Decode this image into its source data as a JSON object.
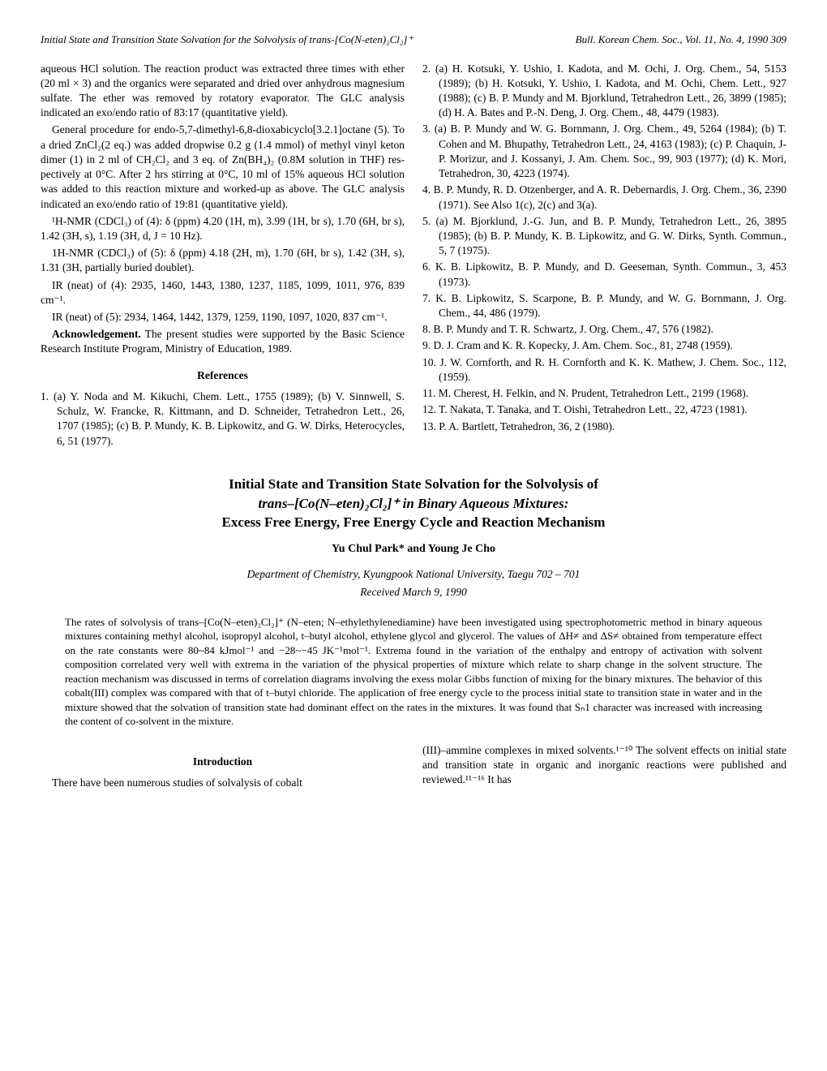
{
  "header": {
    "left": "Initial State and Transition State Solvation for the Solvolysis of trans-[Co(N-eten)₂Cl₂]⁺",
    "right": "Bull. Korean Chem. Soc., Vol. 11, No. 4, 1990   309"
  },
  "body": {
    "p1": "aqueous HCl solution. The reaction product was extracted three times with ether (20 ml × 3) and the organics were separated and dried over anhydrous magnesium sulfate. The ether was removed by rotatory evaporator. The GLC analy­sis indicated an exo/endo ratio of 83:17 (quantitative yield).",
    "p2": "General procedure for endo-5,7-dimethyl-6,8-dioxabicy­clo[3.2.1]octane (5). To a dried ZnCl₂(2 eq.) was added drop­wise 0.2 g (1.4 mmol) of methyl vinyl keton dimer (1) in 2 ml of CH₂Cl₂ and 3 eq. of Zn(BH₄)₂ (0.8M solution in THF) res­pectively at 0°C. After 2 hrs stirring at 0°C, 10 ml of 15% aqueous HCl solution was added to this reaction mixture and worked-up as above. The GLC analysis indicated an exo/endo ratio of 19:81 (quantitative yield).",
    "p3": "¹H-NMR (CDCl₃) of (4): δ (ppm) 4.20 (1H, m), 3.99 (1H, br s), 1.70 (6H, br s), 1.42 (3H, s), 1.19 (3H, d, J = 10 Hz).",
    "p4": "1H-NMR (CDCl₃) of (5): δ (ppm) 4.18 (2H, m), 1.70 (6H, br s), 1.42 (3H, s), 1.31 (3H, partially buried doublet).",
    "p5": "IR (neat) of (4): 2935, 1460, 1443, 1380, 1237, 1185, 1099, 1011, 976, 839 cm⁻¹.",
    "p6": "IR (neat) of (5): 2934, 1464, 1442, 1379, 1259, 1190, 1097, 1020, 837 cm⁻¹.",
    "p7_label": "Acknowledgement.",
    "p7": " The present studies were support­ed by the Basic Science Research Institute Program, Minis­try of Education, 1989.",
    "refs_heading": "References",
    "refs": [
      "1. (a) Y. Noda and M. Kikuchi, Chem. Lett., 1755 (1989); (b) V. Sinnwell, S. Schulz, W. Francke, R. Kittmann, and D. Schneider, Tetrahedron Lett., 26, 1707 (1985); (c) B. P. Mundy, K. B. Lipkowitz, and G. W. Dirks, Hetero­cycles, 6, 51 (1977).",
      "2. (a) H. Kotsuki, Y. Ushio, I. Kadota, and M. Ochi, J. Org. Chem., 54, 5153 (1989); (b) H. Kotsuki, Y. Ushio, I. Kadota, and M. Ochi, Chem. Lett., 927 (1988); (c) B. P. Mundy and M. Bjorklund, Tetrahedron Lett., 26, 3899 (1985); (d) H. A. Bates and P.-N. Deng, J. Org. Chem., 48, 4479 (1983).",
      "3. (a) B. P. Mundy and W. G. Bornmann, J. Org. Chem., 49, 5264 (1984); (b) T. Cohen and M. Bhupathy, Tetrahed­ron Lett., 24, 4163 (1983); (c) P. Chaquin, J-P. Morizur, and J. Kossanyi, J. Am. Chem. Soc., 99, 903 (1977); (d) K. Mori, Tetrahedron, 30, 4223 (1974).",
      "4. B. P. Mundy, R. D. Otzenberger, and A. R. Debernar­dis, J. Org. Chem., 36, 2390 (1971). See Also 1(c), 2(c) and 3(a).",
      "5. (a) M. Bjorklund, J.-G. Jun, and B. P. Mundy, Tetrahed­ron Lett., 26, 3895 (1985); (b) B. P. Mundy, K. B. Lip­kowitz, and G. W. Dirks, Synth. Commun., 5, 7 (1975).",
      "6. K. B. Lipkowitz, B. P. Mundy, and D. Geeseman, Synth. Commun., 3, 453 (1973).",
      "7. K. B. Lipkowitz, S. Scarpone, B. P. Mundy, and W. G. Bornmann, J. Org. Chem., 44, 486 (1979).",
      "8. B. P. Mundy and T. R. Schwartz, J. Org. Chem., 47, 576 (1982).",
      "9. D. J. Cram and K. R. Kopecky, J. Am. Chem. Soc., 81, 2748 (1959).",
      "10. J. W. Cornforth, and R. H. Cornforth and K. K. Mathew, J. Chem. Soc., 112, (1959).",
      "11. M. Cherest, H. Felkin, and N. Prudent, Tetrahedron Lett., 2199 (1968).",
      "12. T. Nakata, T. Tanaka, and T. Oishi, Tetrahedron Lett., 22, 4723 (1981).",
      "13. P. A. Bartlett, Tetrahedron, 36, 2 (1980)."
    ]
  },
  "article": {
    "title_l1": "Initial State and Transition State Solvation for the Solvolysis of",
    "title_l2": "trans–[Co(N–eten)₂Cl₂]⁺ in Binary Aqueous Mixtures:",
    "title_l3": "Excess Free Energy, Free Energy Cycle and Reaction Mechanism",
    "authors": "Yu Chul Park* and Young Je Cho",
    "affiliation": "Department of Chemistry, Kyungpook National University, Taegu 702 – 701",
    "received": "Received March 9, 1990",
    "abstract": "The rates of solvolysis of trans–[Co(N–eten)₂Cl₂]⁺ (N–eten; N–ethylethylenediamine) have been investigated using spectro­photometric method in binary aqueous mixtures containing methyl alcohol, isopropyl alcohol, t–butyl alcohol, ethylene glycol and glycerol. The values of ΔH≠ and ΔS≠ obtained from temperature effect on the rate constants were 80~84 kJmol⁻¹ and −28~−45 JK⁻¹mol⁻¹. Extrema found in the variation of the enthalpy and entropy of activation with solvent composition cor­related very well with extrema in the variation of the physical properties of mixture which relate to sharp change in the sol­vent structure. The reaction mechanism was discussed in terms of correlation diagrams involving the exess molar Gibbs function of mixing for the binary mixtures. The behavior of this cobalt(III) complex was compared with that of t–butyl chloride. The application of free energy cycle to the process initial state to transition state in water and in the mixture showed that the solvation of transition state had dominant effect on the rates in the mixtures. It was found that Sₙ1 character was in­creased with increasing the content of co-solvent in the mixture.",
    "intro_heading": "Introduction",
    "intro_p1": "There have been numerous studies of solvalysis of cobalt",
    "intro_p2": "(III)–ammine complexes in mixed solvents.¹⁻¹⁰ The solvent effects on initial state and transition state in organic and in­organic reactions were published and reviewed.¹¹⁻¹⁶ It has"
  }
}
